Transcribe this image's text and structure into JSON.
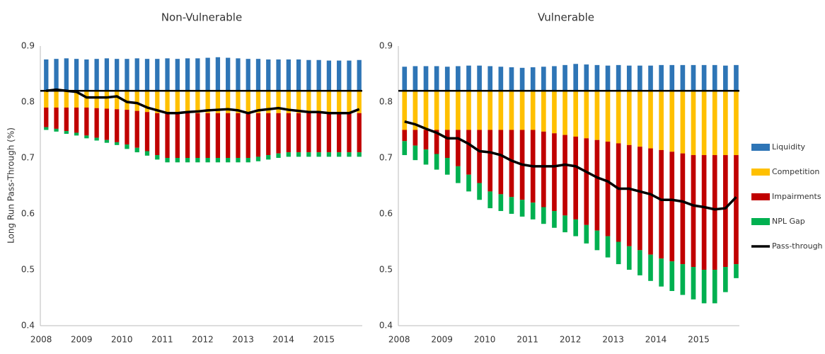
{
  "chart_data": [
    {
      "type": "bar",
      "title": "Non-Vulnerable",
      "y_label": "Long Run Pass-Through (%)",
      "baseline": 0.82,
      "xlim": [
        2007.98,
        2015.95
      ],
      "ylim": [
        0.4,
        0.9
      ],
      "xticks": [
        2008,
        2009,
        2010,
        2011,
        2012,
        2013,
        2014,
        2015
      ],
      "yticks": [
        0.4,
        0.5,
        0.6,
        0.7,
        0.8,
        0.9
      ],
      "x": [
        2008,
        2008.25,
        2008.5,
        2008.75,
        2009,
        2009.25,
        2009.5,
        2009.75,
        2010,
        2010.25,
        2010.5,
        2010.75,
        2011,
        2011.25,
        2011.5,
        2011.75,
        2012,
        2012.25,
        2012.5,
        2012.75,
        2013,
        2013.25,
        2013.5,
        2013.75,
        2014,
        2014.25,
        2014.5,
        2014.75,
        2015,
        2015.25,
        2015.5,
        2015.75
      ],
      "series": [
        {
          "name": "Liquidity",
          "color": "#2e75b6",
          "values": [
            0.056,
            0.057,
            0.058,
            0.057,
            0.056,
            0.057,
            0.058,
            0.057,
            0.057,
            0.058,
            0.057,
            0.057,
            0.058,
            0.057,
            0.058,
            0.058,
            0.059,
            0.06,
            0.059,
            0.058,
            0.057,
            0.057,
            0.056,
            0.056,
            0.056,
            0.056,
            0.055,
            0.055,
            0.054,
            0.054,
            0.054,
            0.055
          ]
        },
        {
          "name": "Competition",
          "color": "#ffc000",
          "values": [
            -0.03,
            -0.03,
            -0.03,
            -0.03,
            -0.03,
            -0.031,
            -0.032,
            -0.033,
            -0.034,
            -0.036,
            -0.038,
            -0.04,
            -0.04,
            -0.04,
            -0.04,
            -0.04,
            -0.04,
            -0.04,
            -0.04,
            -0.04,
            -0.04,
            -0.04,
            -0.04,
            -0.04,
            -0.04,
            -0.04,
            -0.04,
            -0.04,
            -0.04,
            -0.04,
            -0.04,
            -0.04
          ]
        },
        {
          "name": "Impairments",
          "color": "#c00000",
          "values": [
            -0.035,
            -0.038,
            -0.042,
            -0.045,
            -0.05,
            -0.053,
            -0.056,
            -0.059,
            -0.062,
            -0.066,
            -0.07,
            -0.075,
            -0.08,
            -0.08,
            -0.08,
            -0.08,
            -0.08,
            -0.08,
            -0.08,
            -0.08,
            -0.08,
            -0.078,
            -0.075,
            -0.072,
            -0.07,
            -0.07,
            -0.07,
            -0.07,
            -0.07,
            -0.07,
            -0.07,
            -0.07
          ]
        },
        {
          "name": "NPL Gap",
          "color": "#00b050",
          "values": [
            -0.005,
            -0.005,
            -0.005,
            -0.005,
            -0.005,
            -0.005,
            -0.005,
            -0.005,
            -0.008,
            -0.008,
            -0.008,
            -0.008,
            -0.008,
            -0.008,
            -0.008,
            -0.008,
            -0.008,
            -0.008,
            -0.008,
            -0.008,
            -0.008,
            -0.008,
            -0.008,
            -0.008,
            -0.008,
            -0.008,
            -0.008,
            -0.008,
            -0.008,
            -0.008,
            -0.008,
            -0.008
          ]
        },
        {
          "name": "Pass-through",
          "color": "#000000",
          "kind": "line",
          "values": [
            0.82,
            0.822,
            0.82,
            0.818,
            0.808,
            0.808,
            0.808,
            0.81,
            0.8,
            0.798,
            0.79,
            0.785,
            0.78,
            0.78,
            0.782,
            0.783,
            0.785,
            0.786,
            0.787,
            0.785,
            0.78,
            0.785,
            0.787,
            0.789,
            0.786,
            0.784,
            0.782,
            0.782,
            0.78,
            0.78,
            0.78,
            0.787
          ]
        }
      ]
    },
    {
      "type": "bar",
      "title": "Vulnerable",
      "baseline": 0.82,
      "xlim": [
        2007.98,
        2015.95
      ],
      "ylim": [
        0.4,
        0.9
      ],
      "xticks": [
        2008,
        2009,
        2010,
        2011,
        2012,
        2013,
        2014,
        2015
      ],
      "yticks": [
        0.4,
        0.5,
        0.6,
        0.7,
        0.8,
        0.9
      ],
      "x": [
        2008,
        2008.25,
        2008.5,
        2008.75,
        2009,
        2009.25,
        2009.5,
        2009.75,
        2010,
        2010.25,
        2010.5,
        2010.75,
        2011,
        2011.25,
        2011.5,
        2011.75,
        2012,
        2012.25,
        2012.5,
        2012.75,
        2013,
        2013.25,
        2013.5,
        2013.75,
        2014,
        2014.25,
        2014.5,
        2014.75,
        2015,
        2015.25,
        2015.5,
        2015.75
      ],
      "series": [
        {
          "name": "Liquidity",
          "color": "#2e75b6",
          "values": [
            0.043,
            0.044,
            0.044,
            0.044,
            0.043,
            0.044,
            0.045,
            0.045,
            0.044,
            0.043,
            0.042,
            0.041,
            0.042,
            0.043,
            0.044,
            0.046,
            0.048,
            0.047,
            0.046,
            0.045,
            0.046,
            0.045,
            0.045,
            0.045,
            0.046,
            0.046,
            0.046,
            0.046,
            0.046,
            0.046,
            0.045,
            0.046
          ]
        },
        {
          "name": "Competition",
          "color": "#ffc000",
          "values": [
            -0.07,
            -0.07,
            -0.07,
            -0.07,
            -0.07,
            -0.07,
            -0.07,
            -0.07,
            -0.07,
            -0.07,
            -0.07,
            -0.07,
            -0.07,
            -0.073,
            -0.076,
            -0.079,
            -0.082,
            -0.085,
            -0.088,
            -0.091,
            -0.094,
            -0.097,
            -0.1,
            -0.103,
            -0.106,
            -0.109,
            -0.112,
            -0.115,
            -0.115,
            -0.115,
            -0.115,
            -0.115
          ]
        },
        {
          "name": "Impairments",
          "color": "#c00000",
          "values": [
            -0.02,
            -0.028,
            -0.035,
            -0.043,
            -0.05,
            -0.065,
            -0.08,
            -0.095,
            -0.11,
            -0.115,
            -0.12,
            -0.125,
            -0.13,
            -0.135,
            -0.139,
            -0.144,
            -0.148,
            -0.155,
            -0.162,
            -0.169,
            -0.176,
            -0.181,
            -0.185,
            -0.19,
            -0.194,
            -0.196,
            -0.198,
            -0.2,
            -0.205,
            -0.205,
            -0.2,
            -0.195
          ]
        },
        {
          "name": "NPL Gap",
          "color": "#00b050",
          "values": [
            -0.025,
            -0.026,
            -0.027,
            -0.028,
            -0.03,
            -0.03,
            -0.03,
            -0.03,
            -0.03,
            -0.03,
            -0.03,
            -0.03,
            -0.03,
            -0.03,
            -0.03,
            -0.03,
            -0.03,
            -0.033,
            -0.035,
            -0.038,
            -0.04,
            -0.042,
            -0.045,
            -0.047,
            -0.05,
            -0.053,
            -0.055,
            -0.058,
            -0.06,
            -0.06,
            -0.045,
            -0.025
          ]
        },
        {
          "name": "Pass-through",
          "color": "#000000",
          "kind": "line",
          "values": [
            0.765,
            0.76,
            0.752,
            0.745,
            0.735,
            0.735,
            0.725,
            0.712,
            0.71,
            0.705,
            0.695,
            0.688,
            0.685,
            0.685,
            0.685,
            0.688,
            0.685,
            0.675,
            0.665,
            0.658,
            0.645,
            0.645,
            0.64,
            0.635,
            0.625,
            0.625,
            0.622,
            0.615,
            0.612,
            0.608,
            0.61,
            0.63
          ]
        }
      ]
    }
  ]
}
